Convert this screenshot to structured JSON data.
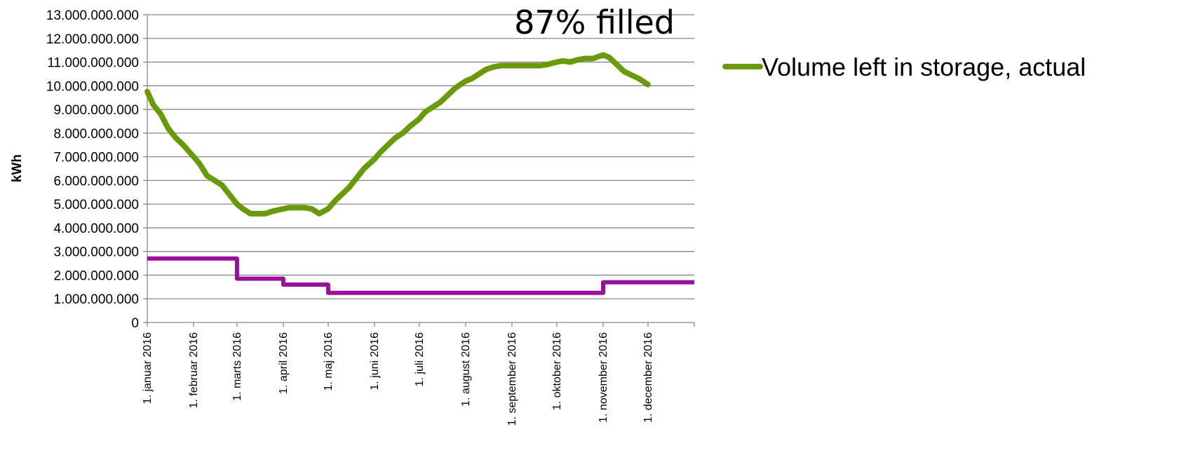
{
  "chart_data": {
    "type": "line",
    "ylabel": "kWh",
    "annotation": "87% filled",
    "ylim": [
      0,
      13000000000
    ],
    "yticks": [
      0,
      1000000000,
      2000000000,
      3000000000,
      4000000000,
      5000000000,
      6000000000,
      7000000000,
      8000000000,
      9000000000,
      10000000000,
      11000000000,
      12000000000,
      13000000000
    ],
    "ytick_labels": [
      "0",
      "1.000.000.000",
      "2.000.000.000",
      "3.000.000.000",
      "4.000.000.000",
      "5.000.000.000",
      "6.000.000.000",
      "7.000.000.000",
      "8.000.000.000",
      "9.000.000.000",
      "10.000.000.000",
      "11.000.000.000",
      "12.000.000.000",
      "13.000.000.000"
    ],
    "xlim": [
      "2016-01-01",
      "2017-01-01"
    ],
    "xticks": [
      "2016-01-01",
      "2016-02-01",
      "2016-03-01",
      "2016-04-01",
      "2016-05-01",
      "2016-06-01",
      "2016-07-01",
      "2016-08-01",
      "2016-09-01",
      "2016-10-01",
      "2016-11-01",
      "2016-12-01"
    ],
    "xtick_labels": [
      "1. januar 2016",
      "1. februar 2016",
      "1. marts 2016",
      "1. april 2016",
      "1. maj 2016",
      "1. juni 2016",
      "1. juli 2016",
      "1. august 2016",
      "1. september 2016",
      "1. oktober 2016",
      "1. november 2016",
      "1. december 2016"
    ],
    "grid": "horizontal",
    "legend_position": "right",
    "series": [
      {
        "name": "Volume left in storage, actual",
        "color": "#6a9a0c",
        "x": [
          "2016-01-01",
          "2016-01-05",
          "2016-01-10",
          "2016-01-15",
          "2016-01-20",
          "2016-01-25",
          "2016-02-01",
          "2016-02-05",
          "2016-02-10",
          "2016-02-15",
          "2016-02-20",
          "2016-02-25",
          "2016-03-01",
          "2016-03-05",
          "2016-03-10",
          "2016-03-15",
          "2016-03-20",
          "2016-03-25",
          "2016-04-01",
          "2016-04-05",
          "2016-04-10",
          "2016-04-15",
          "2016-04-20",
          "2016-04-25",
          "2016-04-28",
          "2016-05-01",
          "2016-05-05",
          "2016-05-10",
          "2016-05-15",
          "2016-05-20",
          "2016-05-25",
          "2016-06-01",
          "2016-06-05",
          "2016-06-10",
          "2016-06-15",
          "2016-06-20",
          "2016-06-25",
          "2016-07-01",
          "2016-07-05",
          "2016-07-10",
          "2016-07-15",
          "2016-07-20",
          "2016-07-25",
          "2016-08-01",
          "2016-08-05",
          "2016-08-10",
          "2016-08-15",
          "2016-08-20",
          "2016-08-25",
          "2016-09-01",
          "2016-09-05",
          "2016-09-10",
          "2016-09-15",
          "2016-09-20",
          "2016-09-25",
          "2016-10-01",
          "2016-10-05",
          "2016-10-10",
          "2016-10-15",
          "2016-10-20",
          "2016-10-25",
          "2016-11-01",
          "2016-11-05",
          "2016-11-10",
          "2016-11-15",
          "2016-11-20",
          "2016-11-25",
          "2016-12-01"
        ],
        "y": [
          9750000000,
          9200000000,
          8800000000,
          8200000000,
          7800000000,
          7500000000,
          7000000000,
          6700000000,
          6200000000,
          6000000000,
          5800000000,
          5400000000,
          5000000000,
          4800000000,
          4600000000,
          4600000000,
          4600000000,
          4700000000,
          4800000000,
          4850000000,
          4850000000,
          4850000000,
          4800000000,
          4600000000,
          4700000000,
          4800000000,
          5100000000,
          5400000000,
          5700000000,
          6100000000,
          6500000000,
          6900000000,
          7200000000,
          7500000000,
          7800000000,
          8000000000,
          8300000000,
          8600000000,
          8900000000,
          9100000000,
          9300000000,
          9600000000,
          9900000000,
          10200000000,
          10300000000,
          10500000000,
          10700000000,
          10800000000,
          10850000000,
          10850000000,
          10850000000,
          10850000000,
          10850000000,
          10850000000,
          10900000000,
          11000000000,
          11050000000,
          11000000000,
          11100000000,
          11150000000,
          11150000000,
          11300000000,
          11200000000,
          10900000000,
          10600000000,
          10450000000,
          10300000000,
          10050000000
        ]
      },
      {
        "name": "",
        "color": "#9b0f9b",
        "x": [
          "2016-01-01",
          "2016-03-01",
          "2016-03-01",
          "2016-04-01",
          "2016-04-01",
          "2016-05-01",
          "2016-05-01",
          "2016-11-01",
          "2016-11-01",
          "2017-01-01"
        ],
        "y": [
          2700000000,
          2700000000,
          1850000000,
          1850000000,
          1600000000,
          1600000000,
          1250000000,
          1250000000,
          1700000000,
          1700000000
        ]
      }
    ]
  }
}
